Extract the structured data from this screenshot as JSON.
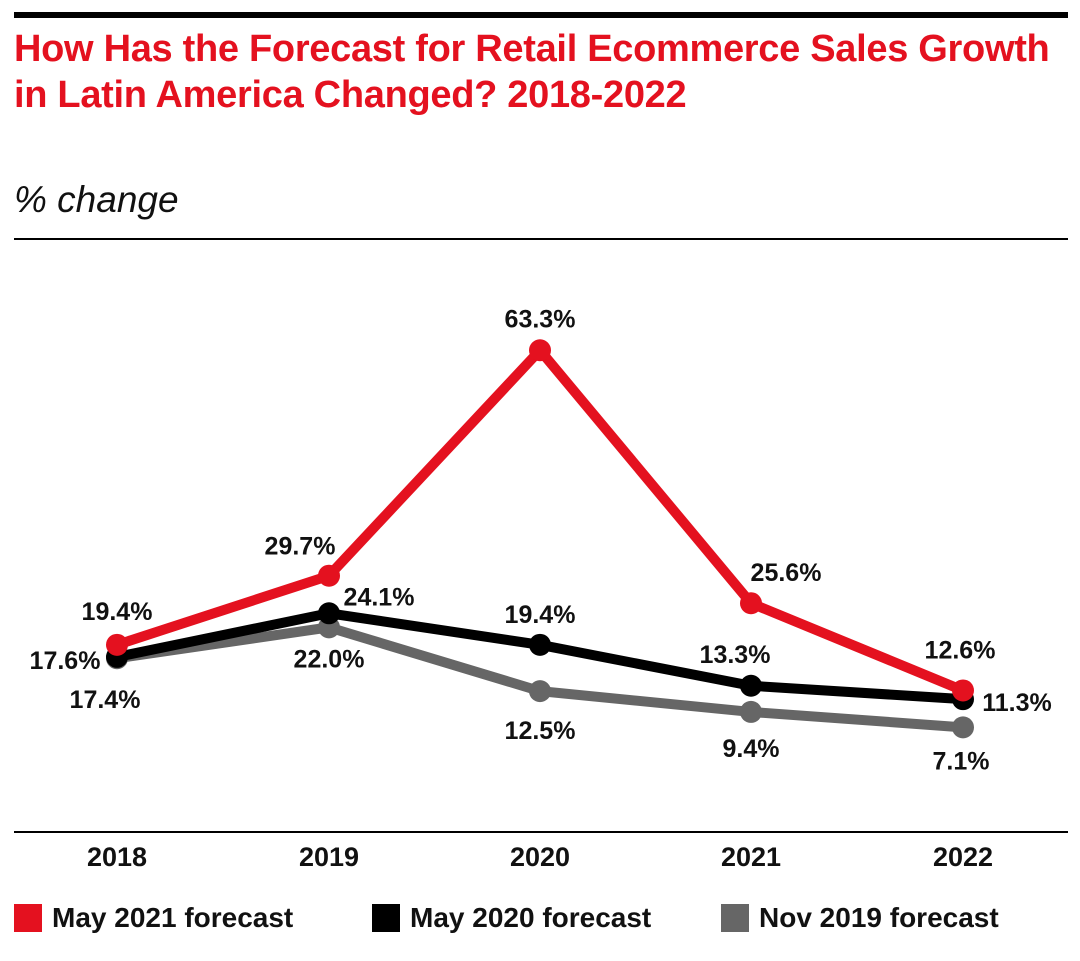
{
  "title": "How Has the Forecast for Retail Ecommerce Sales Growth in Latin America Changed? 2018-2022",
  "subtitle": "% change",
  "chart_data": {
    "type": "line",
    "title": "How Has the Forecast for Retail Ecommerce Sales Growth in Latin America Changed? 2018-2022",
    "ylabel": "% change",
    "xlabel": "",
    "categories": [
      "2018",
      "2019",
      "2020",
      "2021",
      "2022"
    ],
    "ylim": [
      0,
      70
    ],
    "grid": false,
    "legend_position": "bottom",
    "series": [
      {
        "name": "Nov 2019 forecast",
        "color": "#666666",
        "values": [
          17.4,
          22.0,
          12.5,
          9.4,
          7.1
        ],
        "labels": [
          "17.4%",
          "22.0%",
          "12.5%",
          "9.4%",
          "7.1%"
        ]
      },
      {
        "name": "May 2020 forecast",
        "color": "#000000",
        "values": [
          17.6,
          24.1,
          19.4,
          13.3,
          11.3
        ],
        "labels": [
          "17.6%",
          "24.1%",
          "19.4%",
          "13.3%",
          "11.3%"
        ]
      },
      {
        "name": "May 2021 forecast",
        "color": "#e4111f",
        "values": [
          19.4,
          29.7,
          63.3,
          25.6,
          12.6
        ],
        "labels": [
          "19.4%",
          "29.7%",
          "63.3%",
          "25.6%",
          "12.6%"
        ]
      }
    ]
  },
  "legend": [
    {
      "label": "May 2021 forecast",
      "color": "#e4111f"
    },
    {
      "label": "May 2020 forecast",
      "color": "#000000"
    },
    {
      "label": "Nov 2019 forecast",
      "color": "#666666"
    }
  ]
}
